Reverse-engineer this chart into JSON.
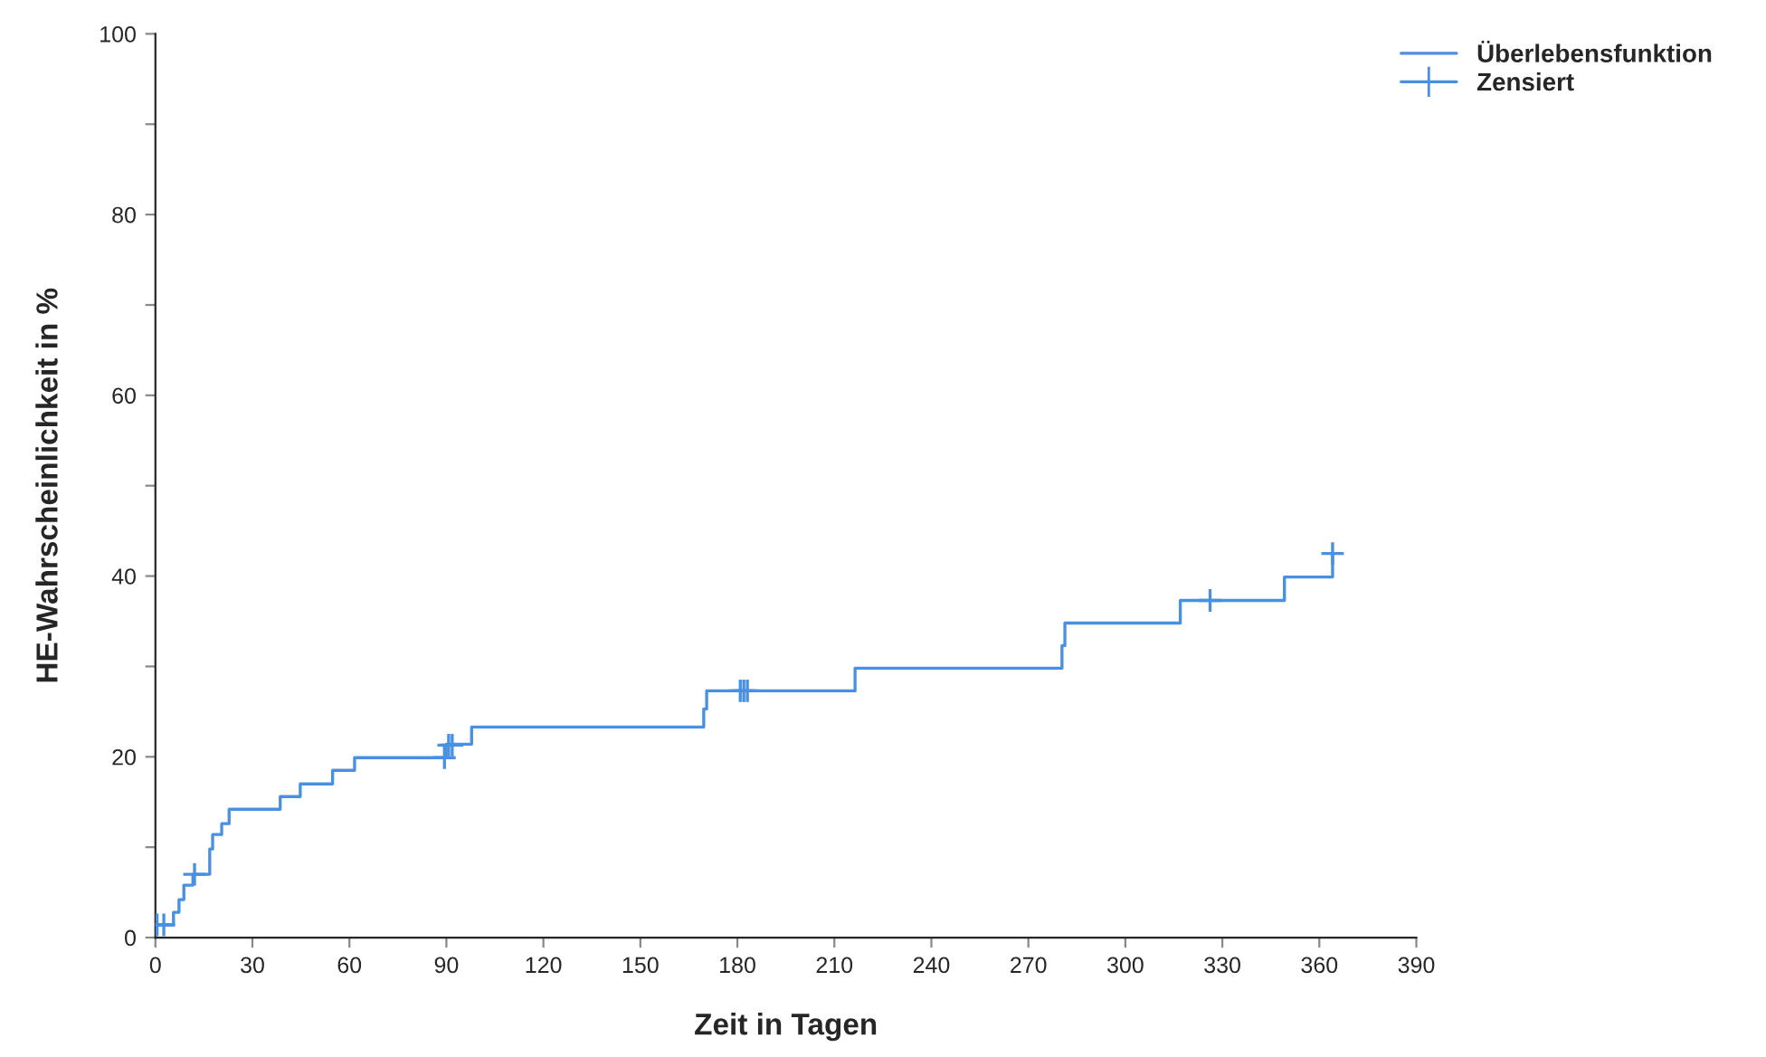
{
  "chart_data": {
    "type": "step",
    "xlabel": "Zeit in Tagen",
    "ylabel": "HE-Wahrscheinlichkeit in %",
    "xlim": [
      0,
      390
    ],
    "xticks": [
      0,
      30,
      60,
      90,
      120,
      150,
      180,
      210,
      240,
      270,
      300,
      330,
      360,
      390
    ],
    "ylim": [
      0,
      100
    ],
    "yticks": [
      0,
      {
        "value": 10,
        "label": null
      },
      20,
      {
        "value": 30,
        "label": null
      },
      40,
      {
        "value": 50,
        "label": null
      },
      60,
      {
        "value": 70,
        "label": null
      },
      80,
      {
        "value": 90,
        "label": null
      },
      100
    ],
    "grid": false,
    "legend": "top right",
    "series": [
      {
        "name": "Überlebensfunktion",
        "color": "#4a90e2",
        "x": [
          0,
          5.6,
          7.3,
          8.8,
          11.6,
          16.8,
          17.7,
          20.5,
          22.8,
          38.6,
          44.8,
          54.8,
          61.6,
          89.9,
          97.8,
          169.6,
          170.5,
          216.4,
          280.4,
          281.3,
          317,
          349.2,
          364.1
        ],
        "values": [
          1.4,
          2.8,
          4.2,
          5.8,
          7.0,
          9.8,
          11.4,
          12.6,
          14.2,
          15.6,
          17.0,
          18.5,
          19.9,
          21.4,
          23.3,
          25.3,
          27.3,
          29.8,
          32.3,
          34.8,
          37.3,
          39.9,
          42.5
        ]
      },
      {
        "name": "Zensiert",
        "type": "scatter",
        "marker": "cross",
        "color": "#4a90e2",
        "x": [
          0.5,
          2.6,
          12.1,
          89.4,
          90.7,
          91.8,
          180.9,
          182.0,
          183.1,
          326.2,
          364.1
        ],
        "values": [
          1.4,
          1.4,
          7.0,
          19.9,
          21.3,
          21.3,
          27.3,
          27.3,
          27.3,
          37.3,
          42.5
        ]
      }
    ]
  }
}
